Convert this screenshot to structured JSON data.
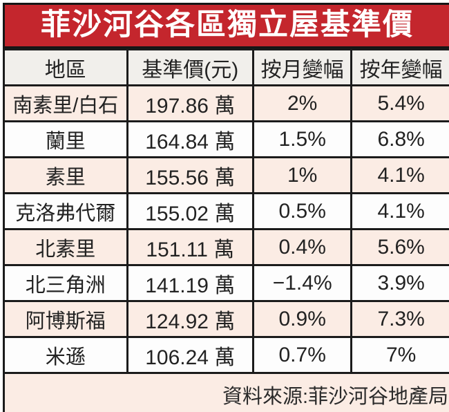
{
  "title": "菲沙河谷各區獨立屋基準價",
  "colors": {
    "banner_red": "#c4262d",
    "banner_text": "#ffffff",
    "row_pink": "#fbece4",
    "row_white": "#fdfdfd",
    "header_gray": "#f1efeb",
    "border_black": "#1b1b1b",
    "text": "#222222"
  },
  "table": {
    "headers": {
      "area": "地區",
      "price": "基準價(元)",
      "monthly": "按月變幅",
      "yearly": "按年變幅"
    },
    "rows": [
      {
        "area": "南素里/白石",
        "price": "197.86 萬",
        "monthly": "2%",
        "yearly": "5.4%"
      },
      {
        "area": "蘭里",
        "price": "164.84 萬",
        "monthly": "1.5%",
        "yearly": "6.8%"
      },
      {
        "area": "素里",
        "price": "155.56 萬",
        "monthly": "1%",
        "yearly": "4.1%"
      },
      {
        "area": "克洛弗代爾",
        "price": "155.02 萬",
        "monthly": "0.5%",
        "yearly": "4.1%"
      },
      {
        "area": "北素里",
        "price": "151.11 萬",
        "monthly": "0.4%",
        "yearly": "5.6%"
      },
      {
        "area": "北三角洲",
        "price": "141.19 萬",
        "monthly": "−1.4%",
        "yearly": "3.9%"
      },
      {
        "area": "阿博斯福",
        "price": "124.92 萬",
        "monthly": "0.9%",
        "yearly": "7.3%"
      },
      {
        "area": "米遜",
        "price": "106.24 萬",
        "monthly": "0.7%",
        "yearly": "7%"
      }
    ],
    "footer_source": "資料來源:菲沙河谷地產局"
  },
  "chart_data": {
    "type": "table",
    "title": "菲沙河谷各區獨立屋基準價",
    "columns": [
      "地區",
      "基準價(元)",
      "按月變幅",
      "按年變幅"
    ],
    "rows": [
      [
        "南素里/白石",
        "197.86 萬",
        "2%",
        "5.4%"
      ],
      [
        "蘭里",
        "164.84 萬",
        "1.5%",
        "6.8%"
      ],
      [
        "素里",
        "155.56 萬",
        "1%",
        "4.1%"
      ],
      [
        "克洛弗代爾",
        "155.02 萬",
        "0.5%",
        "4.1%"
      ],
      [
        "北素里",
        "151.11 萬",
        "0.4%",
        "5.6%"
      ],
      [
        "北三角洲",
        "141.19 萬",
        "−1.4%",
        "3.9%"
      ],
      [
        "阿博斯福",
        "124.92 萬",
        "0.9%",
        "7.3%"
      ],
      [
        "米遜",
        "106.24 萬",
        "0.7%",
        "7%"
      ]
    ],
    "numeric": {
      "benchmark_price_wan": [
        197.86,
        164.84,
        155.56,
        155.02,
        151.11,
        141.19,
        124.92,
        106.24
      ],
      "monthly_change_pct": [
        2,
        1.5,
        1,
        0.5,
        0.4,
        -1.4,
        0.9,
        0.7
      ],
      "yearly_change_pct": [
        5.4,
        6.8,
        4.1,
        4.1,
        5.6,
        3.9,
        7.3,
        7
      ]
    },
    "source": "資料來源:菲沙河谷地產局"
  }
}
